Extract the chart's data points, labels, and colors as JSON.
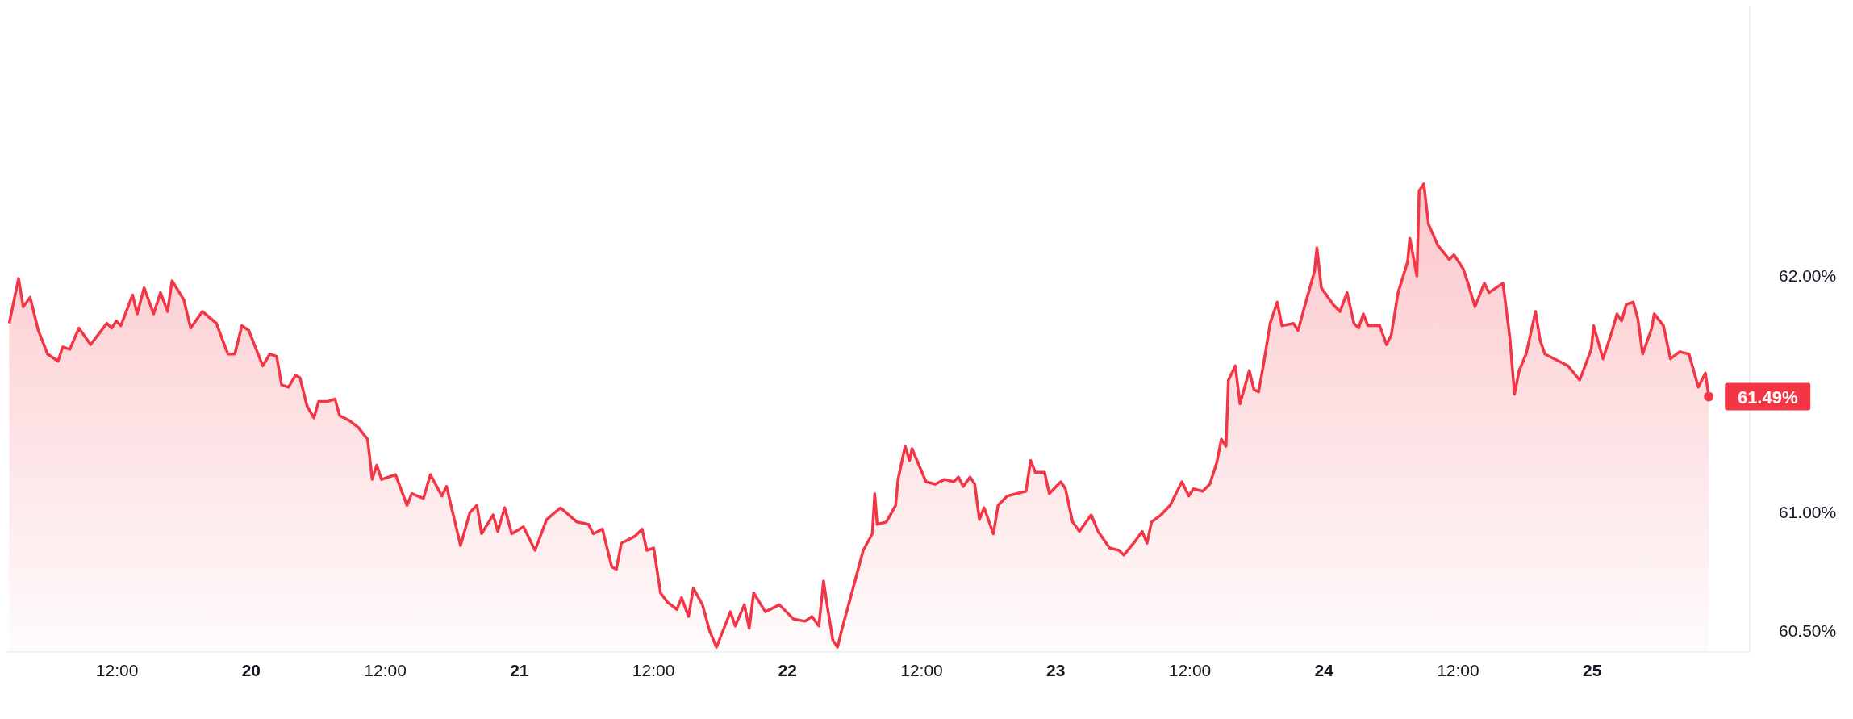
{
  "chart_data": {
    "type": "area",
    "x": [
      "--05-19T02:21",
      "--05-19T03:11",
      "--05-19T03:36",
      "--05-19T04:13",
      "--05-19T04:57",
      "--05-19T05:47",
      "--05-19T06:43",
      "--05-19T07:08",
      "--05-19T07:46",
      "--05-19T08:35",
      "--05-19T09:38",
      "--05-19T11:05",
      "--05-19T11:31",
      "--05-19T11:56",
      "--05-19T12:20",
      "--05-19T13:23",
      "--05-19T13:48",
      "--05-19T14:25",
      "--05-19T15:16",
      "--05-19T15:53",
      "--05-19T16:31",
      "--05-19T16:55",
      "--05-19T17:58",
      "--05-19T18:35",
      "--05-19T19:38",
      "--05-19T20:53",
      "--05-19T21:55",
      "--05-19T22:32",
      "--05-19T23:10",
      "--05-19T23:47",
      "--05-20T01:02",
      "--05-20T01:40",
      "--05-20T02:17",
      "--05-20T02:43",
      "--05-20T03:20",
      "--05-20T03:58",
      "--05-20T04:22",
      "--05-20T05:00",
      "--05-20T05:37",
      "--05-20T06:02",
      "--05-20T06:52",
      "--05-20T07:30",
      "--05-20T07:55",
      "--05-20T08:45",
      "--05-20T09:35",
      "--05-20T10:25",
      "--05-20T10:50",
      "--05-20T11:14",
      "--05-20T11:40",
      "--05-20T12:55",
      "--05-20T13:57",
      "--05-20T14:22",
      "--05-20T15:25",
      "--05-20T16:02",
      "--05-20T17:04",
      "--05-20T17:29",
      "--05-20T18:44",
      "--05-20T19:34",
      "--05-20T20:12",
      "--05-20T20:37",
      "--05-20T21:39",
      "--05-20T22:04",
      "--05-20T22:41",
      "--05-20T23:19",
      "--05-21T00:22",
      "--05-21T01:24",
      "--05-21T02:26",
      "--05-21T03:41",
      "--05-21T05:09",
      "--05-21T06:11",
      "--05-21T06:37",
      "--05-21T07:26",
      "--05-21T08:16",
      "--05-21T08:41",
      "--05-21T09:07",
      "--05-21T10:21",
      "--05-21T10:59",
      "--05-21T11:24",
      "--05-21T12:01",
      "--05-21T12:38",
      "--05-21T13:16",
      "--05-21T14:06",
      "--05-21T14:31",
      "--05-21T15:08",
      "--05-21T15:34",
      "--05-21T16:23",
      "--05-21T17:01",
      "--05-21T17:38",
      "--05-21T18:28",
      "--05-21T18:53",
      "--05-21T19:19",
      "--05-21T20:08",
      "--05-21T20:34",
      "--05-21T20:58",
      "--05-21T22:01",
      "--05-21T23:16",
      "--05-22T00:31",
      "--05-22T01:33",
      "--05-22T02:11",
      "--05-22T02:48",
      "--05-22T03:13",
      "--05-22T03:38",
      "--05-22T04:03",
      "--05-22T04:28",
      "--05-22T04:53",
      "--05-22T05:55",
      "--05-22T06:46",
      "--05-22T07:35",
      "--05-22T07:48",
      "--05-22T08:01",
      "--05-22T08:50",
      "--05-22T09:40",
      "--05-22T09:53",
      "--05-22T10:31",
      "--05-22T10:55",
      "--05-22T11:08",
      "--05-22T12:23",
      "--05-22T13:13",
      "--05-22T14:03",
      "--05-22T14:53",
      "--05-22T15:17",
      "--05-22T15:43",
      "--05-22T16:20",
      "--05-22T16:45",
      "--05-22T17:10",
      "--05-22T17:35",
      "--05-22T18:25",
      "--05-22T18:50",
      "--05-22T19:40",
      "--05-22T21:20",
      "--05-22T21:45",
      "--05-22T22:10",
      "--05-22T23:00",
      "--05-22T23:25",
      "--05-23T00:27",
      "--05-23T00:52",
      "--05-23T01:30",
      "--05-23T02:07",
      "--05-23T03:10",
      "--05-23T03:47",
      "--05-23T04:49",
      "--05-23T05:40",
      "--05-23T06:05",
      "--05-23T07:07",
      "--05-23T07:44",
      "--05-23T08:10",
      "--05-23T08:34",
      "--05-23T09:25",
      "--05-23T10:14",
      "--05-23T11:17",
      "--05-23T11:54",
      "--05-23T12:19",
      "--05-23T13:09",
      "--05-23T13:47",
      "--05-23T14:24",
      "--05-23T14:49",
      "--05-23T15:14",
      "--05-23T15:27",
      "--05-23T16:04",
      "--05-23T16:29",
      "--05-23T17:19",
      "--05-23T17:44",
      "--05-23T18:09",
      "--05-23T18:34",
      "--05-23T19:11",
      "--05-23T19:49",
      "--05-23T20:14",
      "--05-23T21:16",
      "--05-23T21:41",
      "--05-23T22:19",
      "--05-23T23:09",
      "--05-23T23:22",
      "--05-23T23:46",
      "--05-24T00:49",
      "--05-24T01:26",
      "--05-24T02:04",
      "--05-24T02:41",
      "--05-24T03:06",
      "--05-24T03:31",
      "--05-24T03:56",
      "--05-24T04:59",
      "--05-24T05:36",
      "--05-24T06:01",
      "--05-24T06:38",
      "--05-24T07:29",
      "--05-24T07:41",
      "--05-24T08:19",
      "--05-24T08:31",
      "--05-24T08:56",
      "--05-24T09:21",
      "--05-24T10:11",
      "--05-24T11:13",
      "--05-24T11:38",
      "--05-24T12:28",
      "--05-24T12:53",
      "--05-24T13:31",
      "--05-24T14:21",
      "--05-24T14:46",
      "--05-24T16:01",
      "--05-24T16:38",
      "--05-24T17:03",
      "--05-24T17:28",
      "--05-24T18:05",
      "--05-24T18:56",
      "--05-24T19:20",
      "--05-24T19:46",
      "--05-24T21:01",
      "--05-24T21:50",
      "--05-24T22:53",
      "--05-24T23:55",
      "--05-25T00:08",
      "--05-25T00:58",
      "--05-25T01:48",
      "--05-25T02:13",
      "--05-25T02:38",
      "--05-25T03:03",
      "--05-25T03:40",
      "--05-25T04:05",
      "--05-25T04:31",
      "--05-25T05:20",
      "--05-25T05:33",
      "--05-25T06:23",
      "--05-25T07:00",
      "--05-25T07:50",
      "--05-25T08:40",
      "--05-25T09:30",
      "--05-25T10:08",
      "--05-25T10:26"
    ],
    "series": [
      {
        "color": "#f23645",
        "values": [
          61.8,
          61.99,
          61.87,
          61.91,
          61.77,
          61.67,
          61.64,
          61.7,
          61.69,
          61.78,
          61.71,
          61.8,
          61.78,
          61.81,
          61.79,
          61.92,
          61.84,
          61.95,
          61.84,
          61.93,
          61.85,
          61.98,
          61.9,
          61.78,
          61.85,
          61.8,
          61.67,
          61.67,
          61.79,
          61.77,
          61.62,
          61.67,
          61.66,
          61.54,
          61.53,
          61.58,
          61.57,
          61.45,
          61.4,
          61.47,
          61.47,
          61.48,
          61.41,
          61.39,
          61.36,
          61.31,
          61.14,
          61.2,
          61.14,
          61.16,
          61.03,
          61.08,
          61.06,
          61.16,
          61.07,
          61.11,
          60.86,
          61.0,
          61.03,
          60.91,
          60.99,
          60.92,
          61.02,
          60.91,
          60.94,
          60.84,
          60.97,
          61.02,
          60.96,
          60.95,
          60.91,
          60.93,
          60.77,
          60.76,
          60.87,
          60.9,
          60.93,
          60.84,
          60.85,
          60.66,
          60.62,
          60.59,
          60.64,
          60.56,
          60.68,
          60.61,
          60.5,
          60.43,
          60.53,
          60.58,
          60.52,
          60.61,
          60.51,
          60.66,
          60.58,
          60.61,
          60.55,
          60.54,
          60.56,
          60.52,
          60.71,
          60.58,
          60.46,
          60.43,
          60.51,
          60.69,
          60.84,
          60.91,
          61.08,
          60.95,
          60.96,
          61.03,
          61.14,
          61.28,
          61.22,
          61.27,
          61.13,
          61.12,
          61.14,
          61.13,
          61.15,
          61.11,
          61.15,
          61.12,
          60.97,
          61.02,
          60.91,
          61.03,
          61.07,
          61.09,
          61.22,
          61.17,
          61.17,
          61.08,
          61.13,
          61.1,
          60.96,
          60.92,
          60.99,
          60.92,
          60.85,
          60.84,
          60.82,
          60.88,
          60.92,
          60.87,
          60.96,
          60.99,
          61.03,
          61.13,
          61.07,
          61.1,
          61.09,
          61.12,
          61.21,
          61.31,
          61.28,
          61.56,
          61.62,
          61.46,
          61.6,
          61.52,
          61.51,
          61.62,
          61.8,
          61.89,
          61.79,
          61.8,
          61.77,
          61.88,
          62.02,
          62.12,
          61.95,
          61.88,
          61.85,
          61.93,
          61.8,
          61.78,
          61.84,
          61.79,
          61.79,
          61.71,
          61.75,
          61.93,
          62.06,
          62.16,
          62.0,
          62.36,
          62.39,
          62.22,
          62.13,
          62.07,
          62.09,
          62.03,
          61.97,
          61.87,
          61.97,
          61.93,
          61.97,
          61.74,
          61.5,
          61.6,
          61.67,
          61.85,
          61.73,
          61.67,
          61.64,
          61.62,
          61.56,
          61.69,
          61.79,
          61.65,
          61.77,
          61.84,
          61.81,
          61.88,
          61.89,
          61.82,
          61.67,
          61.78,
          61.84,
          61.79,
          61.65,
          61.68,
          61.67,
          61.53,
          61.59,
          61.49
        ]
      }
    ],
    "xlim": [
      "--05-19T02:06",
      "--05-25T14:06"
    ],
    "ylim": [
      60.41,
      63.14
    ],
    "xticks": [
      {
        "value": "--05-19T12:00",
        "label": "12:00"
      },
      {
        "value": "--05-20",
        "label": "20"
      },
      {
        "value": "--05-20T12:00",
        "label": "12:00"
      },
      {
        "value": "--05-21",
        "label": "21"
      },
      {
        "value": "--05-21T12:00",
        "label": "12:00"
      },
      {
        "value": "--05-22",
        "label": "22"
      },
      {
        "value": "--05-22T12:00",
        "label": "12:00"
      },
      {
        "value": "--05-23",
        "label": "23"
      },
      {
        "value": "--05-23T12:00",
        "label": "12:00"
      },
      {
        "value": "--05-24",
        "label": "24"
      },
      {
        "value": "--05-24T12:00",
        "label": "12:00"
      },
      {
        "value": "--05-25",
        "label": "25"
      }
    ],
    "yticks": [
      {
        "value": 60.5,
        "label": "60.50%"
      },
      {
        "value": 61,
        "label": "61.00%"
      },
      {
        "value": 62,
        "label": "62.00%"
      }
    ],
    "annotations": [
      {
        "text": "61.49%",
        "x": "--05-25T10:26",
        "y": 61.49
      }
    ],
    "grid": false,
    "legend": false
  }
}
